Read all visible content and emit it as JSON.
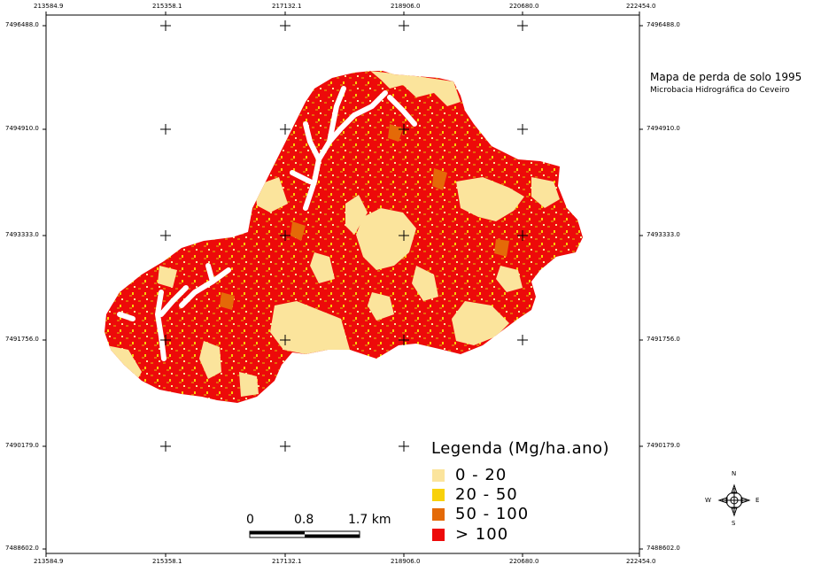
{
  "map": {
    "title": "Mapa de perda de solo 1995",
    "subtitle": "Microbacia Hidrográfica do Ceveiro",
    "x_ticks": [
      "213584.9",
      "215358.1",
      "217132.1",
      "218906.0",
      "220680.0",
      "222454.0"
    ],
    "y_ticks": [
      "7496488.0",
      "7494910.0",
      "7493333.0",
      "7491756.0",
      "7490179.0",
      "7488602.0"
    ]
  },
  "legend": {
    "title": "Legenda (Mg/ha.ano)",
    "items": [
      {
        "label": "0  -  20",
        "color": "#fbe49c"
      },
      {
        "label": "20  -  50",
        "color": "#f8d10a"
      },
      {
        "label": "50  -  100",
        "color": "#e46a08"
      },
      {
        "label": ">  100",
        "color": "#ed0a0a"
      }
    ]
  },
  "scale_bar": {
    "labels": [
      "0",
      "0.8",
      "1.7 km"
    ]
  },
  "compass": {
    "n": "N",
    "s": "S",
    "e": "E",
    "w": "W"
  }
}
